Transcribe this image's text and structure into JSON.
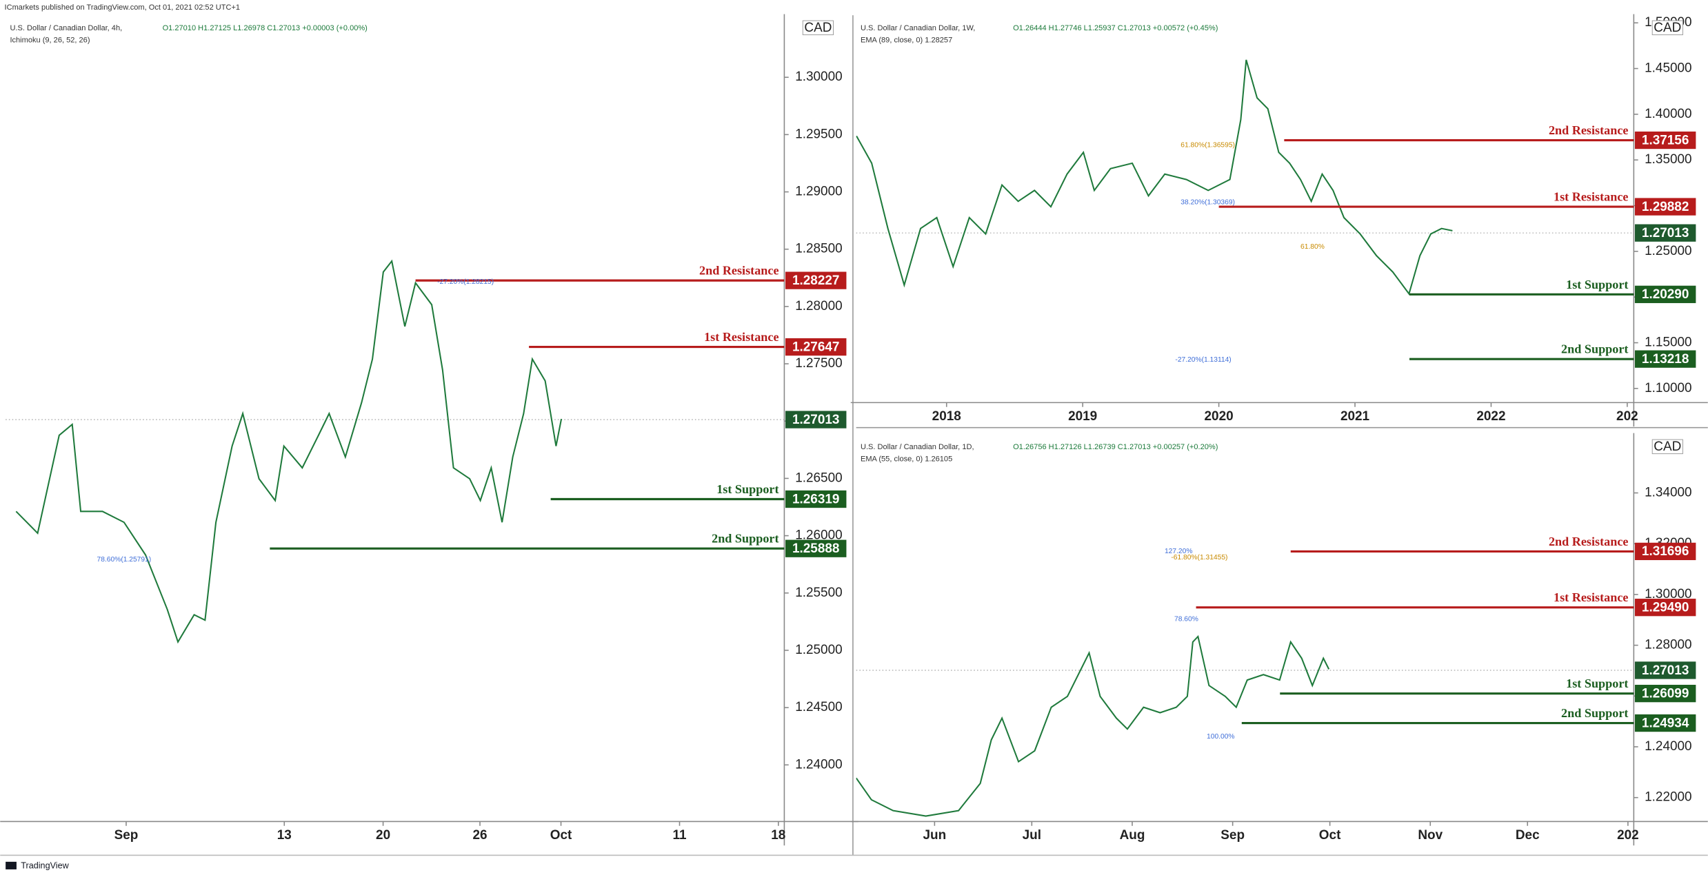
{
  "publisher_line": "ICmarkets published on TradingView.com, Oct 01, 2021 02:52 UTC+1",
  "footer": "TradingView",
  "chart_data": [
    {
      "type": "line",
      "title": "U.S. Dollar / Canadian Dollar, 4h,",
      "ohlc": "O1.27010 H1.27125 L1.26978 C1.27013 +0.00003 (+0.00%)",
      "indicator": "Ichimoku (9, 26, 52, 26)",
      "currency": "CAD",
      "color": "#1f7a3c",
      "x": [
        -5.57,
        -4.48,
        -3.39,
        -2.73,
        -2.3,
        -1.2,
        -0.11,
        0.98,
        2.08,
        2.62,
        3.44,
        3.99,
        4.54,
        5.36,
        5.9,
        6.72,
        7.54,
        7.98,
        8.91,
        9.73,
        10.27,
        11.09,
        11.91,
        12.46,
        13.01,
        13.44,
        14.1,
        14.64,
        15.46,
        16.01,
        16.56,
        17.38,
        17.92,
        18.47,
        19.02,
        19.56,
        20.11,
        20.55,
        21.2,
        21.75,
        22.02
      ],
      "values": [
        1.26212,
        1.26022,
        1.26876,
        1.26971,
        1.26212,
        1.26212,
        1.26117,
        1.25832,
        1.25357,
        1.25073,
        1.2531,
        1.25263,
        1.26117,
        1.26782,
        1.27066,
        1.26497,
        1.26307,
        1.26782,
        1.26592,
        1.26876,
        1.27066,
        1.26687,
        1.27161,
        1.27541,
        1.28301,
        1.28396,
        1.27826,
        1.28206,
        1.28016,
        1.27446,
        1.26592,
        1.26497,
        1.26307,
        1.26592,
        1.26117,
        1.26687,
        1.27066,
        1.27541,
        1.27351,
        1.26782,
        1.27019
      ],
      "xlim": [
        -6.1,
        33.3
      ],
      "xticks": [
        {
          "value": 0,
          "label": "Sep"
        },
        {
          "value": 8,
          "label": "13"
        },
        {
          "value": 13,
          "label": "20"
        },
        {
          "value": 17.9,
          "label": "26"
        },
        {
          "value": 22,
          "label": "Oct"
        },
        {
          "value": 28,
          "label": "11"
        },
        {
          "value": 33,
          "label": "18"
        }
      ],
      "ylim": [
        1.23506,
        1.30532
      ],
      "yticks": [
        {
          "value": 1.24,
          "label": "1.24000"
        },
        {
          "value": 1.245,
          "label": "1.24500"
        },
        {
          "value": 1.25,
          "label": "1.25000"
        },
        {
          "value": 1.255,
          "label": "1.25500"
        },
        {
          "value": 1.26,
          "label": "1.26000"
        },
        {
          "value": 1.265,
          "label": "1.26500"
        },
        {
          "value": 1.27,
          "label": "1.27000"
        },
        {
          "value": 1.275,
          "label": "1.27500"
        },
        {
          "value": 1.28,
          "label": "1.28000"
        },
        {
          "value": 1.285,
          "label": "1.28500"
        },
        {
          "value": 1.29,
          "label": "1.29000"
        },
        {
          "value": 1.295,
          "label": "1.29500"
        },
        {
          "value": 1.3,
          "label": "1.30000"
        }
      ],
      "levels": [
        {
          "name": "2nd Resistance",
          "value": 1.28227,
          "from": 14.64,
          "color": "#b71c1c"
        },
        {
          "name": "1st Resistance",
          "value": 1.27647,
          "from": 20.38,
          "color": "#b71c1c"
        },
        {
          "name": "1st Support",
          "value": 1.26319,
          "from": 21.48,
          "color": "#1b5e20"
        },
        {
          "name": "2nd Support",
          "value": 1.25888,
          "from": 7.27,
          "color": "#1b5e20"
        }
      ],
      "last": 1.27013,
      "annotations": [
        {
          "text": "-27.20%(1.28215)",
          "x": 15.74,
          "y": 1.28215,
          "color": "#3f6ed8"
        },
        {
          "text": "78.60%(1.25791)",
          "x": -1.48,
          "y": 1.25791,
          "color": "#3f6ed8"
        }
      ]
    },
    {
      "type": "line",
      "title": "U.S. Dollar / Canadian Dollar, 1W,",
      "ohlc": "O1.26444 H1.27746 L1.25937 C1.27013 +0.00572 (+0.45%)",
      "indicator": "EMA (89, close, 0) 1.28257",
      "currency": "CAD",
      "color": "#1f7a3c",
      "x": [
        2017.338,
        2017.45,
        2017.569,
        2017.689,
        2017.809,
        2017.928,
        2018.048,
        2018.167,
        2018.287,
        2018.407,
        2018.526,
        2018.646,
        2018.766,
        2018.885,
        2019.005,
        2019.085,
        2019.204,
        2019.364,
        2019.483,
        2019.603,
        2019.762,
        2019.922,
        2020.081,
        2020.161,
        2020.201,
        2020.281,
        2020.36,
        2020.44,
        2020.52,
        2020.6,
        2020.679,
        2020.759,
        2020.839,
        2020.919,
        2021.038,
        2021.158,
        2021.278,
        2021.397,
        2021.477,
        2021.557,
        2021.636,
        2021.716
      ],
      "values": [
        1.37619,
        1.34643,
        1.275,
        1.2131,
        1.275,
        1.2869,
        1.23333,
        1.2869,
        1.26905,
        1.32262,
        1.30476,
        1.31667,
        1.29881,
        1.33452,
        1.35833,
        1.31667,
        1.34048,
        1.34643,
        1.31071,
        1.33452,
        1.32857,
        1.31667,
        1.32857,
        1.39405,
        1.45952,
        1.41786,
        1.40595,
        1.35833,
        1.34643,
        1.32857,
        1.30476,
        1.33452,
        1.31667,
        1.2869,
        1.26905,
        1.24524,
        1.22738,
        1.20357,
        1.24524,
        1.26905,
        1.275,
        1.27262
      ],
      "xlim": [
        2017.336,
        2023.048
      ],
      "xticks": [
        2018,
        2019,
        2020,
        2021,
        2022,
        {
          "value": 2023,
          "label": "202"
        }
      ],
      "ylim": [
        1.08452,
        1.50714
      ],
      "yticks": [
        {
          "value": 1.1,
          "label": "1.10000"
        },
        {
          "value": 1.15,
          "label": "1.15000"
        },
        {
          "value": 1.2,
          "label": "1.20000"
        },
        {
          "value": 1.25,
          "label": "1.25000"
        },
        {
          "value": 1.3,
          "label": "1.30000"
        },
        {
          "value": 1.35,
          "label": "1.35000"
        },
        {
          "value": 1.4,
          "label": "1.40000"
        },
        {
          "value": 1.45,
          "label": "1.45000"
        },
        {
          "value": 1.5,
          "label": "1.50000"
        }
      ],
      "levels": [
        {
          "name": "2nd Resistance",
          "value": 1.37156,
          "from": 2020.48,
          "color": "#b71c1c"
        },
        {
          "name": "1st Resistance",
          "value": 1.29882,
          "from": 2020.0,
          "color": "#b71c1c"
        },
        {
          "name": "1st Support",
          "value": 1.2029,
          "label": "1.20290",
          "from": 2021.4,
          "color": "#1b5e20"
        },
        {
          "name": "2nd Support",
          "value": 1.13218,
          "from": 2021.4,
          "color": "#1b5e20"
        }
      ],
      "last": 1.27013,
      "annotations": [
        {
          "text": "61.80%(1.36595)",
          "x": 2019.72,
          "y": 1.36595,
          "color": "#c88a00"
        },
        {
          "text": "38.20%(1.30369)",
          "x": 2019.72,
          "y": 1.30369,
          "color": "#3f6ed8"
        },
        {
          "text": "61.80%",
          "x": 2020.6,
          "y": 1.255,
          "color": "#c88a00"
        },
        {
          "text": "-27.20%(1.13114)",
          "x": 2019.68,
          "y": 1.13114,
          "color": "#3f6ed8"
        }
      ]
    },
    {
      "type": "line",
      "title": "U.S. Dollar / Canadian Dollar, 1D,",
      "ohlc": "O1.26756 H1.27126 L1.26739 C1.27013 +0.00257 (+0.20%)",
      "indicator": "EMA (55, close, 0) 1.26105",
      "currency": "CAD",
      "color": "#1f7a3c",
      "x": [
        127.8,
        132.5,
        139.2,
        149.3,
        159.4,
        166.1,
        169.5,
        172.8,
        177.9,
        182.9,
        188.0,
        193.0,
        199.7,
        203.1,
        208.1,
        211.5,
        216.5,
        221.6,
        226.6,
        230.0,
        231.7,
        233.3,
        236.7,
        241.7,
        245.1,
        248.5,
        253.5,
        258.5,
        261.9,
        265.3,
        268.6,
        272.0,
        273.7
      ],
      "values": [
        1.22771,
        1.21914,
        1.21486,
        1.21271,
        1.21486,
        1.22557,
        1.24271,
        1.25129,
        1.23414,
        1.23843,
        1.25557,
        1.25986,
        1.277,
        1.25986,
        1.25129,
        1.247,
        1.25557,
        1.25343,
        1.25557,
        1.25986,
        1.28129,
        1.28343,
        1.26414,
        1.25986,
        1.25557,
        1.26629,
        1.26843,
        1.26629,
        1.28129,
        1.27486,
        1.26414,
        1.27486,
        1.27057
      ],
      "xlim": [
        127.8,
        367.8
      ],
      "xticks": [
        {
          "value": 152,
          "label": "Jun"
        },
        {
          "value": 182,
          "label": "Jul"
        },
        {
          "value": 213,
          "label": "Aug"
        },
        {
          "value": 244,
          "label": "Sep"
        },
        {
          "value": 274,
          "label": "Oct"
        },
        {
          "value": 305,
          "label": "Nov"
        },
        {
          "value": 335,
          "label": "Dec"
        },
        {
          "value": 366,
          "label": "202"
        }
      ],
      "ylim": [
        1.21057,
        1.36272
      ],
      "yticks": [
        {
          "value": 1.22,
          "label": "1.22000"
        },
        {
          "value": 1.24,
          "label": "1.24000"
        },
        {
          "value": 1.26,
          "label": "1.26000"
        },
        {
          "value": 1.28,
          "label": "1.28000"
        },
        {
          "value": 1.3,
          "label": "1.30000"
        },
        {
          "value": 1.32,
          "label": "1.32000"
        },
        {
          "value": 1.34,
          "label": "1.34000"
        }
      ],
      "levels": [
        {
          "name": "2nd Resistance",
          "value": 1.31696,
          "from": 261.9,
          "color": "#b71c1c"
        },
        {
          "name": "1st Resistance",
          "value": 1.2949,
          "label": "1.29490",
          "from": 232.7,
          "color": "#b71c1c"
        },
        {
          "name": "1st Support",
          "value": 1.26099,
          "from": 258.6,
          "color": "#1b5e20"
        },
        {
          "name": "2nd Support",
          "value": 1.24934,
          "from": 246.8,
          "color": "#1b5e20"
        }
      ],
      "last": 1.27013,
      "annotations": [
        {
          "text": "127.20%",
          "x": 223.0,
          "y": 1.31696,
          "color": "#3f6ed8"
        },
        {
          "text": "-61.80%(1.31455)",
          "x": 225.0,
          "y": 1.31455,
          "color": "#c88a00"
        },
        {
          "text": "78.60%",
          "x": 226.0,
          "y": 1.2903,
          "color": "#3f6ed8"
        },
        {
          "text": "100.00%",
          "x": 236.0,
          "y": 1.244,
          "color": "#3f6ed8"
        }
      ]
    }
  ]
}
